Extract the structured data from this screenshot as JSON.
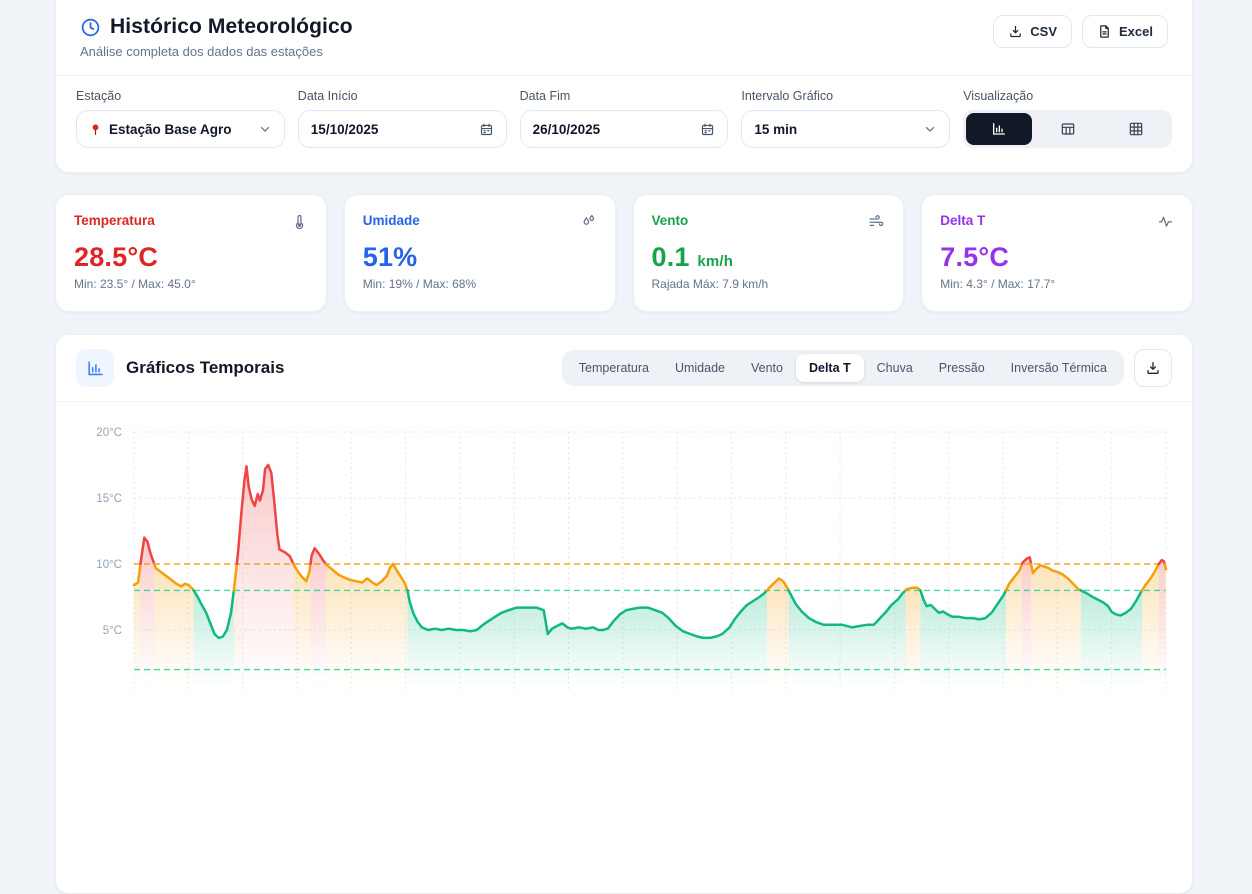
{
  "header": {
    "title": "Histórico Meteorológico",
    "subtitle": "Análise completa dos dados das estações",
    "export_csv": "CSV",
    "export_excel": "Excel"
  },
  "filters": {
    "station": {
      "label": "Estação",
      "value": "Estação Base Agro"
    },
    "date_start": {
      "label": "Data Início",
      "value": "15/10/2025"
    },
    "date_end": {
      "label": "Data Fim",
      "value": "26/10/2025"
    },
    "interval": {
      "label": "Intervalo Gráfico",
      "value": "15 min"
    },
    "view": {
      "label": "Visualização",
      "options": [
        "chart",
        "table",
        "grid"
      ],
      "selected": "chart"
    }
  },
  "stats": [
    {
      "label": "Temperatura",
      "value": "28.5°C",
      "unit": "",
      "detail": "Min: 23.5° / Max: 45.0°",
      "color": "#dc2626",
      "icon": "thermometer"
    },
    {
      "label": "Umidade",
      "value": "51%",
      "unit": "",
      "detail": "Min: 19% / Max: 68%",
      "color": "#2563eb",
      "icon": "droplets"
    },
    {
      "label": "Vento",
      "value": "0.1",
      "unit": "km/h",
      "detail": "Rajada Máx: 7.9 km/h",
      "color": "#16a34a",
      "icon": "wind"
    },
    {
      "label": "Delta T",
      "value": "7.5°C",
      "unit": "",
      "detail": "Min: 4.3° / Max: 17.7°",
      "color": "#9333ea",
      "icon": "activity"
    }
  ],
  "chart_section": {
    "title": "Gráficos Temporais",
    "tabs": [
      "Temperatura",
      "Umidade",
      "Vento",
      "Delta T",
      "Chuva",
      "Pressão",
      "Inversão Térmica"
    ],
    "active_tab": "Delta T"
  },
  "chart_data": {
    "type": "line",
    "title": "Delta T",
    "unit": "°C",
    "x_range": [
      "15/10/2025",
      "26/10/2025"
    ],
    "ylim": [
      0,
      21
    ],
    "yticks": [
      20,
      15,
      10,
      5
    ],
    "grid": {
      "vertical_lines": 20,
      "horizontal_dotted": true
    },
    "thresholds": [
      {
        "value": 10,
        "color": "#f59e0b"
      },
      {
        "value": 8,
        "color": "#34d399"
      },
      {
        "value": 2,
        "color": "#34d399"
      }
    ],
    "color_rules": {
      "green_below": 8,
      "orange_between": [
        8,
        10
      ],
      "red_above": 10
    },
    "series_colors": {
      "green": "#10b981",
      "orange": "#f59e0b",
      "red": "#ef4444"
    },
    "series": {
      "name": "Delta T",
      "points": [
        [
          0.0,
          8.4
        ],
        [
          0.004,
          8.6
        ],
        [
          0.007,
          10.4
        ],
        [
          0.01,
          12.0
        ],
        [
          0.013,
          11.7
        ],
        [
          0.016,
          10.8
        ],
        [
          0.021,
          9.7
        ],
        [
          0.026,
          9.4
        ],
        [
          0.031,
          9.1
        ],
        [
          0.036,
          8.8
        ],
        [
          0.041,
          8.5
        ],
        [
          0.046,
          8.3
        ],
        [
          0.049,
          8.5
        ],
        [
          0.053,
          8.4
        ],
        [
          0.057,
          8.1
        ],
        [
          0.061,
          7.6
        ],
        [
          0.065,
          7.0
        ],
        [
          0.07,
          6.3
        ],
        [
          0.075,
          5.3
        ],
        [
          0.078,
          4.7
        ],
        [
          0.082,
          4.4
        ],
        [
          0.086,
          4.5
        ],
        [
          0.09,
          5.0
        ],
        [
          0.094,
          6.3
        ],
        [
          0.098,
          8.8
        ],
        [
          0.101,
          11.0
        ],
        [
          0.104,
          13.8
        ],
        [
          0.107,
          16.3
        ],
        [
          0.109,
          17.4
        ],
        [
          0.111,
          15.9
        ],
        [
          0.114,
          14.9
        ],
        [
          0.117,
          14.4
        ],
        [
          0.12,
          15.3
        ],
        [
          0.122,
          14.8
        ],
        [
          0.125,
          15.6
        ],
        [
          0.127,
          17.2
        ],
        [
          0.13,
          17.5
        ],
        [
          0.133,
          16.9
        ],
        [
          0.136,
          14.6
        ],
        [
          0.139,
          12.2
        ],
        [
          0.141,
          11.1
        ],
        [
          0.146,
          10.9
        ],
        [
          0.151,
          10.6
        ],
        [
          0.155,
          9.9
        ],
        [
          0.159,
          9.4
        ],
        [
          0.163,
          9.0
        ],
        [
          0.167,
          8.7
        ],
        [
          0.17,
          9.4
        ],
        [
          0.172,
          10.6
        ],
        [
          0.175,
          11.2
        ],
        [
          0.179,
          10.8
        ],
        [
          0.183,
          10.3
        ],
        [
          0.187,
          9.9
        ],
        [
          0.192,
          9.6
        ],
        [
          0.198,
          9.2
        ],
        [
          0.203,
          9.0
        ],
        [
          0.209,
          8.8
        ],
        [
          0.215,
          8.7
        ],
        [
          0.221,
          8.6
        ],
        [
          0.226,
          8.9
        ],
        [
          0.231,
          8.6
        ],
        [
          0.235,
          8.4
        ],
        [
          0.24,
          8.7
        ],
        [
          0.245,
          9.1
        ],
        [
          0.248,
          9.7
        ],
        [
          0.251,
          10.0
        ],
        [
          0.254,
          9.6
        ],
        [
          0.258,
          9.1
        ],
        [
          0.262,
          8.6
        ],
        [
          0.265,
          8.0
        ],
        [
          0.267,
          7.2
        ],
        [
          0.271,
          6.2
        ],
        [
          0.275,
          5.6
        ],
        [
          0.279,
          5.2
        ],
        [
          0.285,
          5.0
        ],
        [
          0.292,
          5.1
        ],
        [
          0.298,
          5.0
        ],
        [
          0.305,
          5.1
        ],
        [
          0.312,
          5.0
        ],
        [
          0.319,
          5.0
        ],
        [
          0.326,
          4.9
        ],
        [
          0.332,
          5.0
        ],
        [
          0.34,
          5.5
        ],
        [
          0.348,
          5.9
        ],
        [
          0.356,
          6.3
        ],
        [
          0.363,
          6.5
        ],
        [
          0.371,
          6.7
        ],
        [
          0.381,
          6.7
        ],
        [
          0.39,
          6.7
        ],
        [
          0.397,
          6.5
        ],
        [
          0.401,
          4.7
        ],
        [
          0.405,
          5.1
        ],
        [
          0.41,
          5.3
        ],
        [
          0.415,
          5.5
        ],
        [
          0.42,
          5.2
        ],
        [
          0.424,
          5.1
        ],
        [
          0.431,
          5.2
        ],
        [
          0.438,
          5.1
        ],
        [
          0.445,
          5.2
        ],
        [
          0.45,
          5.0
        ],
        [
          0.454,
          5.0
        ],
        [
          0.459,
          5.1
        ],
        [
          0.465,
          5.7
        ],
        [
          0.471,
          6.2
        ],
        [
          0.477,
          6.5
        ],
        [
          0.483,
          6.6
        ],
        [
          0.49,
          6.7
        ],
        [
          0.498,
          6.7
        ],
        [
          0.505,
          6.5
        ],
        [
          0.512,
          6.3
        ],
        [
          0.518,
          5.9
        ],
        [
          0.525,
          5.3
        ],
        [
          0.532,
          4.9
        ],
        [
          0.539,
          4.7
        ],
        [
          0.546,
          4.5
        ],
        [
          0.552,
          4.4
        ],
        [
          0.558,
          4.4
        ],
        [
          0.564,
          4.5
        ],
        [
          0.57,
          4.7
        ],
        [
          0.577,
          5.2
        ],
        [
          0.582,
          5.8
        ],
        [
          0.588,
          6.4
        ],
        [
          0.594,
          6.9
        ],
        [
          0.6,
          7.2
        ],
        [
          0.606,
          7.5
        ],
        [
          0.611,
          7.8
        ],
        [
          0.617,
          8.3
        ],
        [
          0.622,
          8.7
        ],
        [
          0.625,
          8.9
        ],
        [
          0.629,
          8.7
        ],
        [
          0.633,
          8.2
        ],
        [
          0.637,
          7.6
        ],
        [
          0.641,
          7.0
        ],
        [
          0.647,
          6.4
        ],
        [
          0.654,
          5.9
        ],
        [
          0.661,
          5.6
        ],
        [
          0.668,
          5.4
        ],
        [
          0.676,
          5.4
        ],
        [
          0.686,
          5.4
        ],
        [
          0.696,
          5.2
        ],
        [
          0.703,
          5.3
        ],
        [
          0.711,
          5.4
        ],
        [
          0.717,
          5.4
        ],
        [
          0.723,
          5.9
        ],
        [
          0.729,
          6.4
        ],
        [
          0.734,
          6.9
        ],
        [
          0.74,
          7.3
        ],
        [
          0.745,
          7.8
        ],
        [
          0.749,
          8.1
        ],
        [
          0.754,
          8.2
        ],
        [
          0.759,
          8.2
        ],
        [
          0.762,
          8.0
        ],
        [
          0.765,
          7.3
        ],
        [
          0.768,
          6.8
        ],
        [
          0.772,
          6.9
        ],
        [
          0.776,
          6.6
        ],
        [
          0.78,
          6.3
        ],
        [
          0.784,
          6.4
        ],
        [
          0.788,
          6.2
        ],
        [
          0.793,
          6.0
        ],
        [
          0.799,
          6.0
        ],
        [
          0.806,
          5.9
        ],
        [
          0.813,
          5.9
        ],
        [
          0.819,
          5.8
        ],
        [
          0.825,
          5.9
        ],
        [
          0.831,
          6.3
        ],
        [
          0.837,
          7.0
        ],
        [
          0.843,
          7.7
        ],
        [
          0.848,
          8.5
        ],
        [
          0.853,
          9.0
        ],
        [
          0.858,
          9.5
        ],
        [
          0.861,
          10.1
        ],
        [
          0.865,
          10.4
        ],
        [
          0.868,
          10.5
        ],
        [
          0.871,
          9.3
        ],
        [
          0.874,
          9.6
        ],
        [
          0.878,
          9.9
        ],
        [
          0.882,
          9.8
        ],
        [
          0.886,
          9.7
        ],
        [
          0.89,
          9.5
        ],
        [
          0.895,
          9.4
        ],
        [
          0.9,
          9.2
        ],
        [
          0.905,
          8.9
        ],
        [
          0.91,
          8.5
        ],
        [
          0.915,
          8.1
        ],
        [
          0.92,
          7.9
        ],
        [
          0.925,
          7.7
        ],
        [
          0.929,
          7.5
        ],
        [
          0.934,
          7.3
        ],
        [
          0.939,
          7.1
        ],
        [
          0.944,
          6.8
        ],
        [
          0.947,
          6.4
        ],
        [
          0.951,
          6.2
        ],
        [
          0.956,
          6.1
        ],
        [
          0.961,
          6.3
        ],
        [
          0.966,
          6.6
        ],
        [
          0.971,
          7.2
        ],
        [
          0.976,
          7.9
        ],
        [
          0.98,
          8.4
        ],
        [
          0.985,
          8.9
        ],
        [
          0.989,
          9.4
        ],
        [
          0.993,
          10.0
        ],
        [
          0.996,
          10.3
        ],
        [
          0.998,
          10.2
        ],
        [
          1.0,
          9.6
        ]
      ]
    }
  }
}
